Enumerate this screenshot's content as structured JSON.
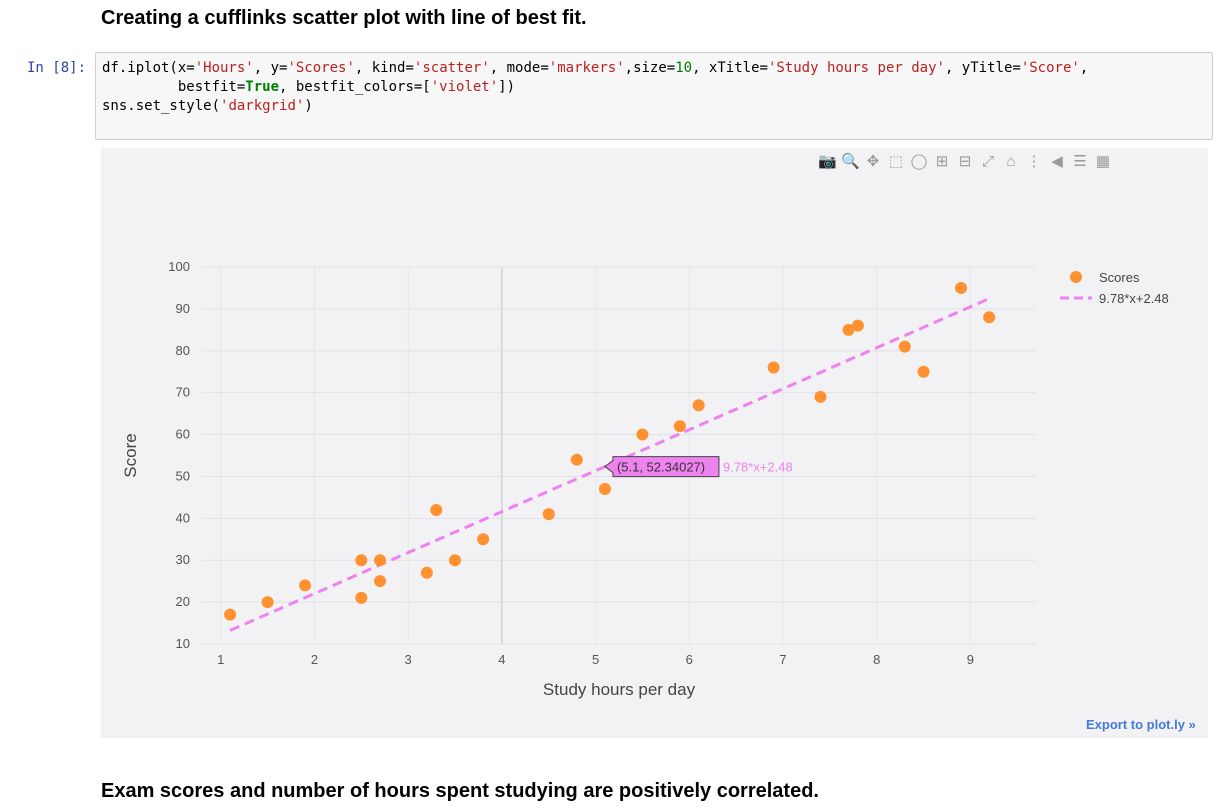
{
  "heading": "Creating a cufflinks scatter plot with line of best fit.",
  "cell": {
    "prompt": "In [8]:",
    "code_lines": [
      [
        "df.iplot(x=",
        "'Hours'",
        ", y=",
        "'Scores'",
        ", kind=",
        "'scatter'",
        ", mode=",
        "'markers'",
        ",size=",
        "10",
        ", xTitle=",
        "'Study hours per day'",
        ", yTitle=",
        "'Score'",
        ","
      ],
      [
        "         bestfit=",
        "True",
        ", bestfit_colors=[",
        "'violet'",
        "])"
      ],
      [
        "sns.set_style(",
        "'darkgrid'",
        ")"
      ]
    ]
  },
  "modebar": {
    "icons": [
      "camera-icon",
      "zoom-icon",
      "pan-icon",
      "box-select-icon",
      "lasso-icon",
      "zoom-in-icon",
      "zoom-out-icon",
      "autoscale-icon",
      "reset-axes-icon",
      "spike-lines-icon",
      "hover-closest-icon",
      "hover-compare-icon",
      "plotly-logo-icon"
    ]
  },
  "export_link": "Export to plot.ly »",
  "conclusion": "Exam scores and number of hours spent studying are positively correlated.",
  "chart_data": {
    "type": "scatter",
    "xlabel": "Study hours per day",
    "ylabel": "Score",
    "xlim": [
      0.8,
      9.7
    ],
    "ylim": [
      10,
      100
    ],
    "xticks": [
      1,
      2,
      3,
      4,
      5,
      6,
      7,
      8,
      9
    ],
    "yticks": [
      10,
      20,
      30,
      40,
      50,
      60,
      70,
      80,
      90,
      100
    ],
    "grid": true,
    "legend_position": "top-right",
    "series": [
      {
        "name": "Scores",
        "mode": "markers",
        "color": "#ff9130",
        "x": [
          1.1,
          1.5,
          1.9,
          2.5,
          2.5,
          2.7,
          2.7,
          3.2,
          3.3,
          3.5,
          3.8,
          4.5,
          4.8,
          5.1,
          5.5,
          5.9,
          6.1,
          6.9,
          7.4,
          7.7,
          7.8,
          8.3,
          8.5,
          8.9,
          9.2
        ],
        "y": [
          17,
          20,
          24,
          21,
          30,
          25,
          30,
          27,
          42,
          30,
          35,
          41,
          54,
          47,
          60,
          62,
          67,
          76,
          69,
          85,
          86,
          81,
          75,
          95,
          88
        ]
      },
      {
        "name": "9.78*x+2.48",
        "mode": "lines",
        "dash": "dash",
        "color": "#ee82ee",
        "slope": 9.78,
        "intercept": 2.48,
        "x": [
          1.1,
          9.2
        ]
      }
    ],
    "hover": {
      "x": 5.1,
      "label": "(5.1, 52.34027)",
      "series_name": "9.78*x+2.48"
    }
  }
}
